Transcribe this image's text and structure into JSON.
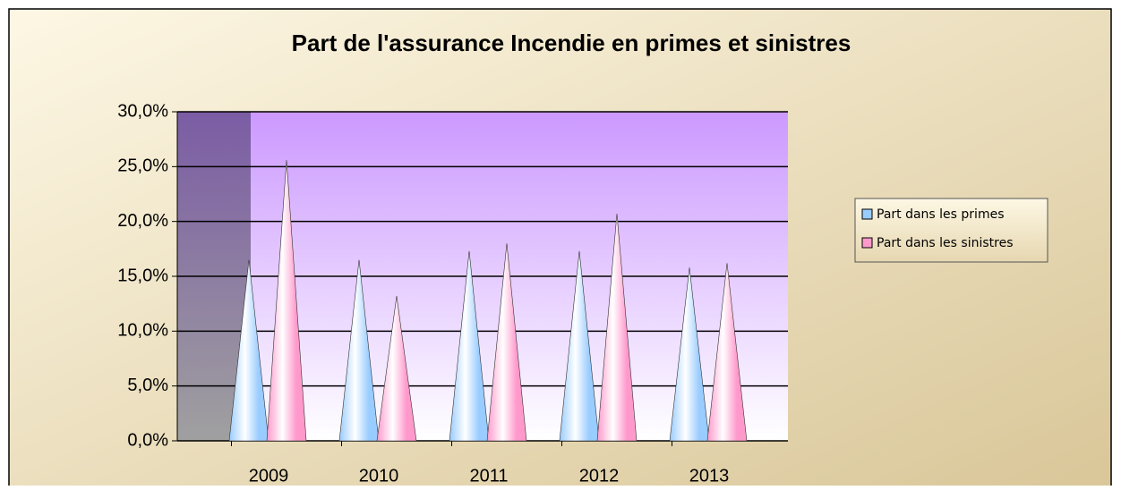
{
  "chart_data": {
    "type": "cone",
    "title": "Part de l'assurance Incendie en primes et sinistres",
    "categories": [
      "2009",
      "2010",
      "2011",
      "2012",
      "2013"
    ],
    "series": [
      {
        "name": "Part dans les primes",
        "color": "#99ccff",
        "values": [
          16.5,
          16.5,
          17.3,
          17.3,
          15.8
        ]
      },
      {
        "name": "Part dans les sinistres",
        "color": "#ff99cc",
        "values": [
          25.6,
          13.2,
          18.0,
          20.7,
          16.2
        ]
      }
    ],
    "ylim": [
      0,
      30
    ],
    "yticks": [
      {
        "value": 0,
        "label": "0,0%"
      },
      {
        "value": 5,
        "label": "5,0%"
      },
      {
        "value": 10,
        "label": "10,0%"
      },
      {
        "value": 15,
        "label": "15,0%"
      },
      {
        "value": 20,
        "label": "20,0%"
      },
      {
        "value": 25,
        "label": "25,0%"
      },
      {
        "value": 30,
        "label": "30,0%"
      }
    ],
    "grid": true,
    "legend": "right"
  }
}
